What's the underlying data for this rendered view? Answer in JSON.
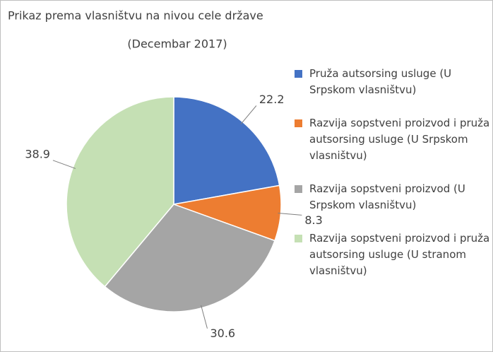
{
  "chart_data": {
    "type": "pie",
    "title": "Prikaz prema vlasništvu na nivou cele države",
    "subtitle": "(Decembar 2017)",
    "categories": [
      "Pruža autsorsing usluge (U Srpskom vlasništvu)",
      "Razvija sopstveni proizvod i pruža autsorsing usluge (U Srpskom vlasništvu)",
      "Razvija sopstveni proizvod (U Srpskom vlasništvu)",
      "Razvija sopstveni proizvod i pruža autsorsing usluge (U stranom vlasništvu)"
    ],
    "values": [
      22.2,
      8.3,
      30.6,
      38.9
    ],
    "colors": [
      "#4472c4",
      "#ed7d31",
      "#a5a5a5",
      "#c5e0b4"
    ],
    "legend": "right"
  }
}
